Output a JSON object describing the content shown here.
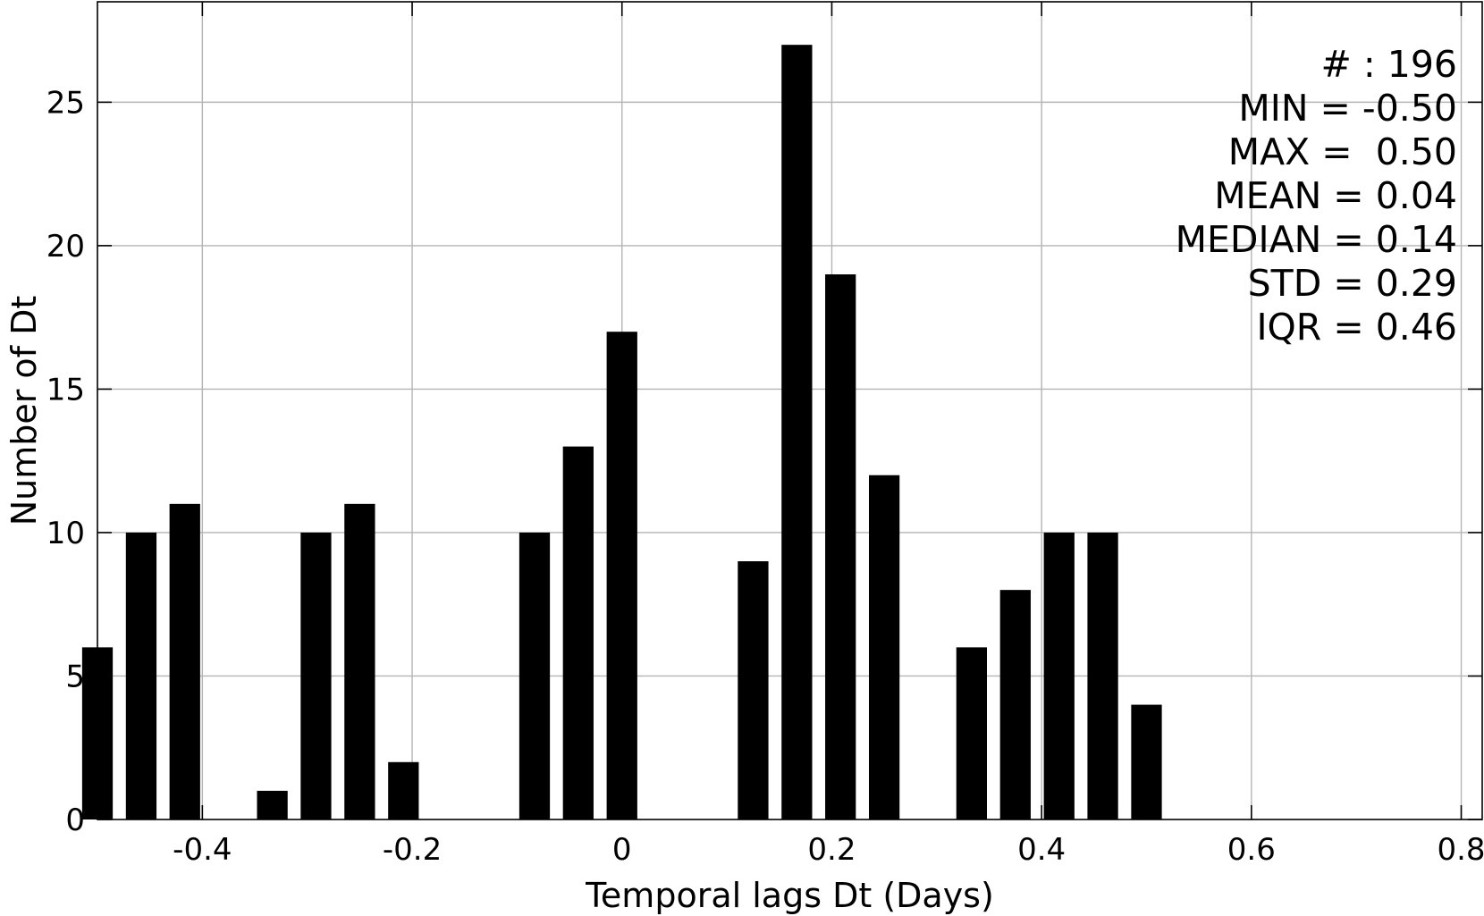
{
  "chart_data": {
    "type": "bar",
    "xlabel": "Temporal lags Dt (Days)",
    "ylabel": "Number of Dt",
    "xlim": [
      -0.5,
      0.82
    ],
    "ylim": [
      0,
      28.5
    ],
    "grid": true,
    "x_ticks": [
      {
        "value": -0.4,
        "label": "-0.4"
      },
      {
        "value": -0.2,
        "label": "-0.2"
      },
      {
        "value": 0,
        "label": "0"
      },
      {
        "value": 0.2,
        "label": "0.2"
      },
      {
        "value": 0.4,
        "label": "0.4"
      },
      {
        "value": 0.6,
        "label": "0.6"
      },
      {
        "value": 0.8,
        "label": "0.8"
      }
    ],
    "y_ticks": [
      {
        "value": 0,
        "label": "0"
      },
      {
        "value": 5,
        "label": "5"
      },
      {
        "value": 10,
        "label": "10"
      },
      {
        "value": 15,
        "label": "15"
      },
      {
        "value": 20,
        "label": "20"
      },
      {
        "value": 25,
        "label": "25"
      }
    ],
    "bar_width": 0.0292,
    "color": "#000000",
    "bars": [
      {
        "x": -0.5,
        "y": 6
      },
      {
        "x": -0.4583,
        "y": 10
      },
      {
        "x": -0.4167,
        "y": 11
      },
      {
        "x": -0.3333,
        "y": 1
      },
      {
        "x": -0.2917,
        "y": 10
      },
      {
        "x": -0.25,
        "y": 11
      },
      {
        "x": -0.2083,
        "y": 2
      },
      {
        "x": -0.0833,
        "y": 10
      },
      {
        "x": -0.0417,
        "y": 13
      },
      {
        "x": 0.0,
        "y": 17
      },
      {
        "x": 0.125,
        "y": 9
      },
      {
        "x": 0.1667,
        "y": 27
      },
      {
        "x": 0.2083,
        "y": 19
      },
      {
        "x": 0.25,
        "y": 12
      },
      {
        "x": 0.3333,
        "y": 6
      },
      {
        "x": 0.375,
        "y": 8
      },
      {
        "x": 0.4167,
        "y": 10
      },
      {
        "x": 0.4583,
        "y": 10
      },
      {
        "x": 0.5,
        "y": 4
      }
    ],
    "annotations": [
      "# : 196",
      "MIN = -0.50",
      "MAX =  0.50",
      "MEAN = 0.04",
      "MEDIAN = 0.14",
      "STD = 0.29",
      "IQR = 0.46"
    ]
  }
}
